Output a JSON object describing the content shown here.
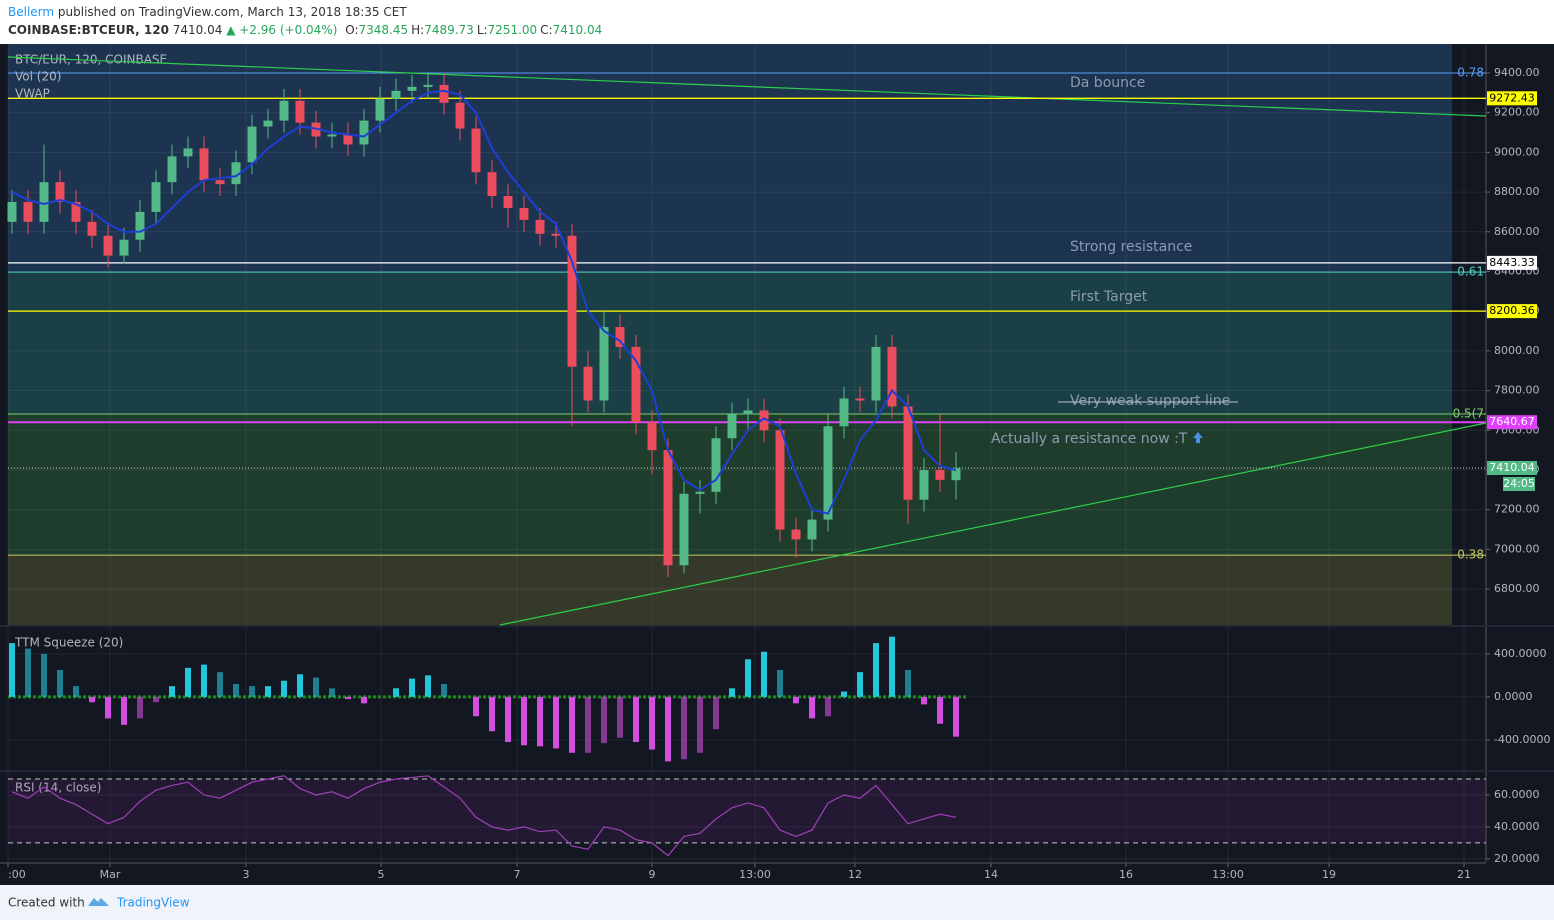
{
  "header": {
    "author": "Bellerm",
    "published": "published on TradingView.com, March 13, 2018 18:35 CET",
    "symbol": "COINBASE:BTCEUR, 120",
    "last": "7410.04",
    "change": "▲ +2.96 (+0.04%)",
    "ohlc": [
      {
        "k": "O:",
        "v": "7348.45"
      },
      {
        "k": "H:",
        "v": "7489.73"
      },
      {
        "k": "L:",
        "v": "7251.00"
      },
      {
        "k": "C:",
        "v": "7410.04"
      }
    ]
  },
  "footer": {
    "created": "Created with",
    "brand": "TradingView"
  },
  "chart_data": [
    {
      "type": "candlestick",
      "title": "BTC/EUR, 120, COINBASE",
      "studies": [
        "Vol (20)"
      ],
      "xtick_labels": [
        ":00",
        "Mar",
        "3",
        "5",
        "7",
        "9",
        "13:00",
        "12",
        "14",
        "16",
        "13:00",
        "19",
        "21"
      ],
      "open": [
        8650,
        8750,
        8650,
        8850,
        8750,
        8650,
        8580,
        8480,
        8560,
        8700,
        8850,
        8980,
        9020,
        8860,
        8840,
        8950,
        9130,
        9160,
        9260,
        9150,
        9080,
        9090,
        9040,
        9160,
        9270,
        9310,
        9330,
        9340,
        9250,
        9120,
        8900,
        8780,
        8720,
        8660,
        8590,
        8580,
        7920,
        7750,
        8120,
        8020,
        7640,
        7500,
        6920,
        7280,
        7290,
        7560,
        7680,
        7700,
        7600,
        7100,
        7050,
        7150,
        7620,
        7760,
        7750,
        8020,
        7720,
        7250,
        7400,
        7348.45
      ],
      "high": [
        8810,
        8810,
        9040,
        8910,
        8810,
        8710,
        8640,
        8620,
        8760,
        8910,
        9040,
        9080,
        9080,
        8920,
        9010,
        9190,
        9220,
        9320,
        9320,
        9210,
        9150,
        9150,
        9220,
        9330,
        9370,
        9390,
        9400,
        9400,
        9310,
        9180,
        8960,
        8840,
        8780,
        8720,
        8650,
        8640,
        8000,
        8200,
        8180,
        8080,
        7700,
        7560,
        7340,
        7350,
        7620,
        7740,
        7760,
        7760,
        7660,
        7160,
        7210,
        7680,
        7820,
        7820,
        8080,
        8080,
        7780,
        7460,
        7680,
        7489.73
      ],
      "low": [
        8590,
        8590,
        8590,
        8690,
        8590,
        8520,
        8420,
        8440,
        8500,
        8640,
        8790,
        8920,
        8800,
        8780,
        8780,
        8890,
        9070,
        9100,
        9090,
        9020,
        9020,
        8980,
        8980,
        9100,
        9210,
        9250,
        9270,
        9190,
        9060,
        8840,
        8720,
        8620,
        8600,
        8530,
        8520,
        7620,
        7690,
        7690,
        7960,
        7580,
        7380,
        6860,
        6880,
        7180,
        7230,
        7500,
        7600,
        7540,
        7040,
        6960,
        6990,
        7090,
        7560,
        7690,
        7690,
        7660,
        7130,
        7190,
        7290,
        7251
      ],
      "close": [
        8750,
        8650,
        8850,
        8750,
        8650,
        8580,
        8480,
        8560,
        8700,
        8850,
        8980,
        9020,
        8860,
        8840,
        8950,
        9130,
        9160,
        9260,
        9150,
        9080,
        9090,
        9040,
        9160,
        9270,
        9310,
        9330,
        9340,
        9250,
        9120,
        8900,
        8780,
        8720,
        8660,
        8590,
        8580,
        7920,
        7750,
        8120,
        8020,
        7640,
        7500,
        6920,
        7280,
        7290,
        7560,
        7680,
        7700,
        7600,
        7100,
        7050,
        7150,
        7620,
        7760,
        7750,
        8020,
        7720,
        7250,
        7400,
        7350,
        7410.04
      ],
      "up_color": "#53b987",
      "down_color": "#eb4d5c",
      "series": [
        {
          "name": "VWAP",
          "color": "#1e3fd6",
          "values": [
            8800,
            8760,
            8740,
            8760,
            8740,
            8700,
            8640,
            8600,
            8600,
            8640,
            8720,
            8800,
            8860,
            8870,
            8880,
            8940,
            9020,
            9080,
            9130,
            9120,
            9100,
            9090,
            9080,
            9140,
            9200,
            9260,
            9300,
            9310,
            9290,
            9200,
            9020,
            8900,
            8800,
            8700,
            8640,
            8450,
            8200,
            8100,
            8050,
            7950,
            7800,
            7500,
            7350,
            7300,
            7350,
            7480,
            7600,
            7660,
            7620,
            7380,
            7200,
            7180,
            7350,
            7550,
            7650,
            7800,
            7720,
            7500,
            7420,
            7400
          ]
        }
      ],
      "ylim": [
        6619,
        9546
      ],
      "yticks": [
        {
          "value": 6800,
          "label": "6800.00"
        },
        {
          "value": 7000,
          "label": "7000.00"
        },
        {
          "value": 7200,
          "label": "7200.00"
        },
        {
          "value": 7400,
          "label": "7400.00"
        },
        {
          "value": 7600,
          "label": "7600.00"
        },
        {
          "value": 7800,
          "label": "7800.00"
        },
        {
          "value": 8000,
          "label": "8000.00"
        },
        {
          "value": 8200,
          "label": "8200.00"
        },
        {
          "value": 8400,
          "label": "8400.00"
        },
        {
          "value": 8600,
          "label": "8600.00"
        },
        {
          "value": 8800,
          "label": "8800.00"
        },
        {
          "value": 9000,
          "label": "9000.00"
        },
        {
          "value": 9200,
          "label": "9200.00"
        },
        {
          "value": 9400,
          "label": "9400.00"
        }
      ],
      "fib_levels": [
        {
          "label": "0.78",
          "value": 9400,
          "color": "#5b9cf6",
          "fill": "#1d3450"
        },
        {
          "label": "0.61",
          "value": 8397,
          "color": "#4dd0c0",
          "fill": "#1b3f46"
        },
        {
          "label": "0.5(7",
          "value": 7682,
          "color": "#7bd36a",
          "fill": "#1f3d2c"
        },
        {
          "label": "0.38",
          "value": 6971,
          "color": "#c8c864",
          "fill": "#35392a"
        }
      ],
      "price_lines": [
        {
          "label": "9272.43",
          "value": 9272.43,
          "color": "#ffff00"
        },
        {
          "label": "8443.33",
          "value": 8443.33,
          "color": "#ffffff"
        },
        {
          "label": "8200.36",
          "value": 8200.36,
          "color": "#ffff00"
        },
        {
          "label": "7640.67",
          "value": 7640.67,
          "color": "#e040fb"
        }
      ],
      "last_price": {
        "label": "7410.04",
        "value": 7410.04,
        "countdown": "24:05",
        "color": "#53b987"
      },
      "annotations": [
        "Da bounce",
        "Strong resistance",
        "First Target",
        "Very weak support line",
        "Actually a resistance now :T"
      ]
    },
    {
      "type": "histogram",
      "title": "TTM Squeeze (20)",
      "color_pos": "#26c6da",
      "color_neg": "#d24ee0",
      "values": [
        500,
        450,
        400,
        250,
        100,
        -50,
        -200,
        -260,
        -200,
        -50,
        100,
        270,
        300,
        230,
        120,
        100,
        100,
        150,
        210,
        180,
        80,
        -20,
        -60,
        0,
        80,
        170,
        200,
        120,
        0,
        -180,
        -320,
        -420,
        -450,
        -460,
        -480,
        -520,
        -520,
        -430,
        -380,
        -420,
        -490,
        -600,
        -580,
        -520,
        -300,
        80,
        350,
        420,
        250,
        -60,
        -200,
        -180,
        50,
        230,
        500,
        560,
        250,
        -70,
        -250,
        -370
      ],
      "ylim": [
        -680,
        650
      ],
      "yticks": [
        {
          "value": 400,
          "label": "400.0000"
        },
        {
          "value": 0,
          "label": "0.0000"
        },
        {
          "value": -400,
          "label": "-400.0000"
        }
      ]
    },
    {
      "type": "line",
      "title": "RSI (14, close)",
      "color": "#a040b8",
      "values": [
        62,
        58,
        65,
        58,
        54,
        48,
        42,
        46,
        56,
        63,
        66,
        68,
        60,
        58,
        63,
        68,
        70,
        72,
        64,
        60,
        62,
        58,
        64,
        68,
        70,
        71,
        72,
        65,
        58,
        46,
        40,
        38,
        40,
        37,
        38,
        28,
        26,
        40,
        38,
        32,
        30,
        22,
        34,
        36,
        45,
        52,
        55,
        52,
        38,
        34,
        38,
        55,
        60,
        58,
        66,
        54,
        42,
        45,
        48,
        46
      ],
      "ylim": [
        18,
        74.4
      ],
      "bands": [
        30,
        70
      ],
      "yticks": [
        {
          "value": 60,
          "label": "60.0000"
        },
        {
          "value": 40,
          "label": "40.0000"
        },
        {
          "value": 20,
          "label": "20.0000"
        }
      ]
    }
  ]
}
